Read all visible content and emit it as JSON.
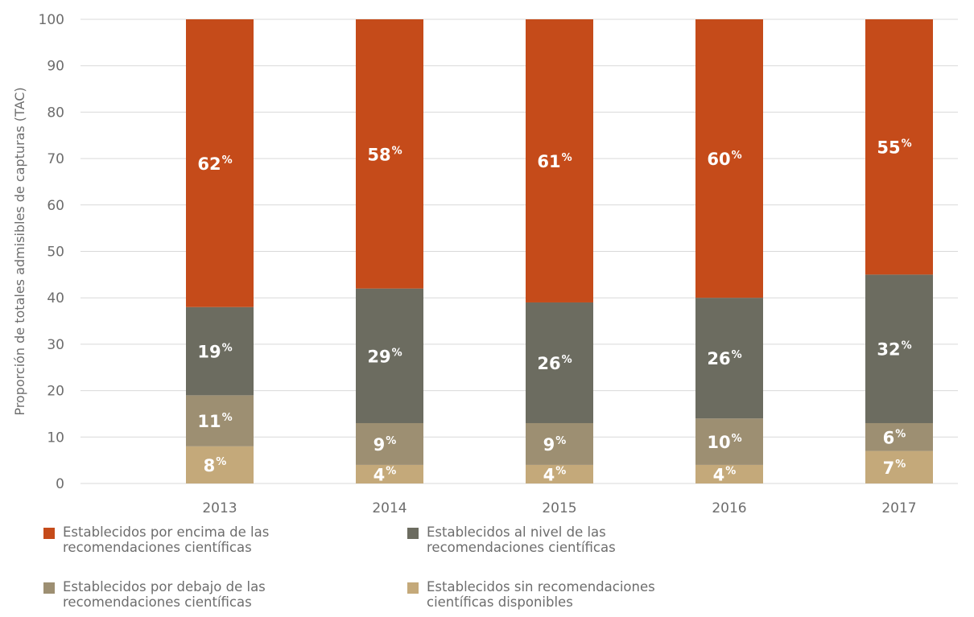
{
  "chart_data": {
    "type": "bar",
    "stacked": true,
    "title": "",
    "xlabel": "",
    "ylabel": "Proporción de totales admisibles de capturas (TAC)",
    "ylim": [
      0,
      100
    ],
    "yticks": [
      0,
      10,
      20,
      30,
      40,
      50,
      60,
      70,
      80,
      90,
      100
    ],
    "grid": true,
    "categories": [
      "2013",
      "2014",
      "2015",
      "2016",
      "2017"
    ],
    "series": [
      {
        "key": "sin",
        "legend_lines": [
          "Establecidos sin recomendaciones",
          "científicas disponibles"
        ],
        "color": "#c4a97a",
        "values": [
          8,
          4,
          4,
          4,
          7
        ],
        "labels": [
          "8",
          "4",
          "4",
          "4",
          "7"
        ]
      },
      {
        "key": "debajo",
        "legend_lines": [
          "Establecidos por debajo de las",
          "recomendaciones científicas"
        ],
        "color": "#9d8f72",
        "values": [
          11,
          9,
          9,
          10,
          6
        ],
        "labels": [
          "11",
          "9",
          "9",
          "10",
          "6"
        ]
      },
      {
        "key": "nivel",
        "legend_lines": [
          "Establecidos al nivel de las",
          "recomendaciones científicas"
        ],
        "color": "#6c6c60",
        "values": [
          19,
          29,
          26,
          26,
          32
        ],
        "labels": [
          "19",
          "29",
          "26",
          "26",
          "32"
        ]
      },
      {
        "key": "encima",
        "legend_lines": [
          "Establecidos por encima de las",
          "recomendaciones científicas"
        ],
        "color": "#c54b1a",
        "values": [
          62,
          58,
          61,
          60,
          55
        ],
        "labels": [
          "62",
          "58",
          "61",
          "60",
          "55"
        ]
      }
    ],
    "percent_symbol": "%",
    "legend_placement": "bottom",
    "legend_order": [
      "encima",
      "nivel",
      "debajo",
      "sin"
    ]
  }
}
